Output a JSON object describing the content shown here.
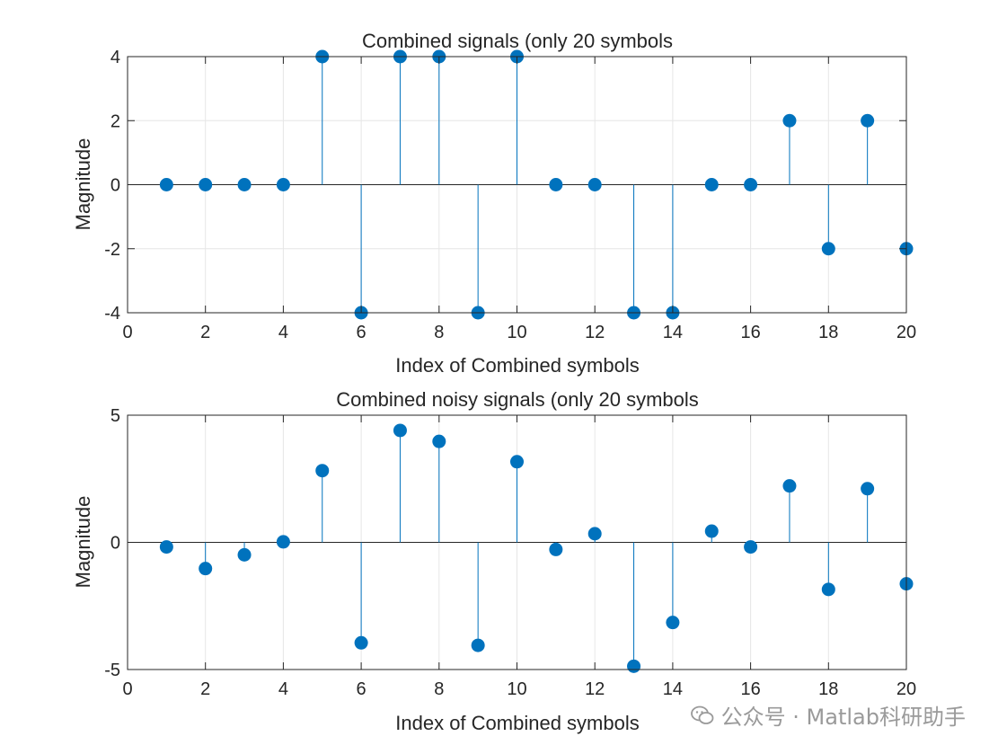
{
  "chart_data": [
    {
      "type": "stem",
      "title": "Combined signals (only 20 symbols",
      "xlabel": "Index of Combined symbols",
      "ylabel": "Magnitude",
      "xlim": [
        0,
        20
      ],
      "ylim": [
        -4,
        4
      ],
      "xticks": [
        0,
        2,
        4,
        6,
        8,
        10,
        12,
        14,
        16,
        18,
        20
      ],
      "yticks": [
        -4,
        -2,
        0,
        2,
        4
      ],
      "grid": true,
      "x": [
        1,
        2,
        3,
        4,
        5,
        6,
        7,
        8,
        9,
        10,
        11,
        12,
        13,
        14,
        15,
        16,
        17,
        18,
        19,
        20
      ],
      "values": [
        0,
        0,
        0,
        0,
        4,
        -4,
        4,
        4,
        -4,
        4,
        0,
        0,
        -4,
        -4,
        0,
        0,
        2,
        -2,
        2,
        -2
      ],
      "color": "#0072BD"
    },
    {
      "type": "stem",
      "title": "Combined noisy signals (only 20 symbols",
      "xlabel": "Index of Combined symbols",
      "ylabel": "Magnitude",
      "xlim": [
        0,
        20
      ],
      "ylim": [
        -5,
        5
      ],
      "xticks": [
        0,
        2,
        4,
        6,
        8,
        10,
        12,
        14,
        16,
        18,
        20
      ],
      "yticks": [
        -5,
        0,
        5
      ],
      "grid": true,
      "x": [
        1,
        2,
        3,
        4,
        5,
        6,
        7,
        8,
        9,
        10,
        11,
        12,
        13,
        14,
        15,
        16,
        17,
        18,
        19,
        20
      ],
      "values": [
        -0.18,
        -1.03,
        -0.49,
        0.02,
        2.82,
        -3.95,
        4.4,
        3.97,
        -4.05,
        3.17,
        -0.28,
        0.34,
        -4.87,
        -3.15,
        0.44,
        -0.18,
        2.22,
        -1.85,
        2.11,
        -1.63
      ],
      "color": "#0072BD"
    }
  ],
  "watermark": "公众号 · Matlab科研助手"
}
